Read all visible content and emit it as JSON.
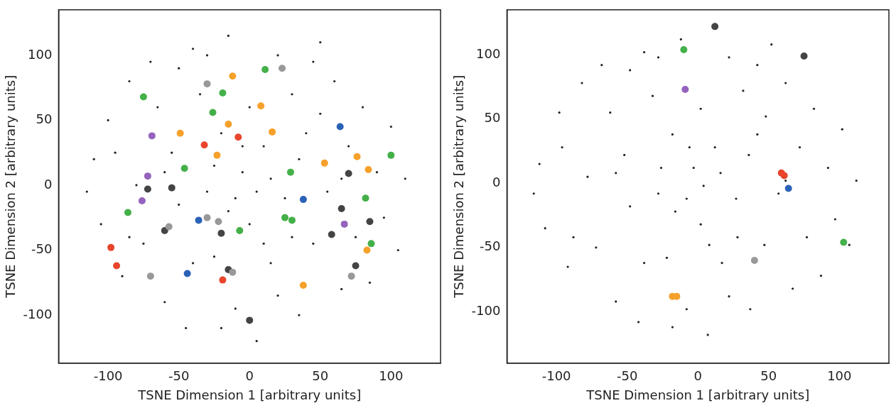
{
  "chart_data": [
    {
      "type": "scatter",
      "x_label": "TSNE Dimension 1 [arbitrary units]",
      "y_label": "TSNE Dimension 2 [arbitrary units]",
      "xlim": [
        -135,
        135
      ],
      "ylim": [
        -137,
        135
      ],
      "xticks": [
        -100,
        -50,
        0,
        50,
        100
      ],
      "yticks": [
        -100,
        -50,
        0,
        50,
        100
      ],
      "grid": false,
      "series": [
        {
          "color": "#222222",
          "marker": ".",
          "values": [
            [
              -110,
              20
            ],
            [
              -105,
              -30
            ],
            [
              -100,
              50
            ],
            [
              -90,
              -70
            ],
            [
              -85,
              80
            ],
            [
              -80,
              0
            ],
            [
              -75,
              -45
            ],
            [
              -70,
              95
            ],
            [
              -65,
              60
            ],
            [
              -60,
              -90
            ],
            [
              -55,
              25
            ],
            [
              -50,
              -15
            ],
            [
              -45,
              -110
            ],
            [
              -40,
              105
            ],
            [
              -35,
              70
            ],
            [
              -30,
              -5
            ],
            [
              -25,
              -55
            ],
            [
              -20,
              40
            ],
            [
              -15,
              115
            ],
            [
              -10,
              -95
            ],
            [
              -5,
              10
            ],
            [
              0,
              60
            ],
            [
              0,
              -30
            ],
            [
              5,
              -120
            ],
            [
              10,
              30
            ],
            [
              15,
              -60
            ],
            [
              20,
              100
            ],
            [
              25,
              -10
            ],
            [
              30,
              70
            ],
            [
              35,
              -100
            ],
            [
              40,
              40
            ],
            [
              45,
              -45
            ],
            [
              50,
              110
            ],
            [
              55,
              -5
            ],
            [
              60,
              80
            ],
            [
              65,
              -80
            ],
            [
              70,
              30
            ],
            [
              75,
              -40
            ],
            [
              80,
              60
            ],
            [
              85,
              -75
            ],
            [
              90,
              10
            ],
            [
              95,
              -25
            ],
            [
              100,
              45
            ],
            [
              105,
              -50
            ],
            [
              110,
              5
            ],
            [
              -115,
              -5
            ],
            [
              -95,
              25
            ],
            [
              -60,
              10
            ],
            [
              -40,
              -60
            ],
            [
              -10,
              -10
            ],
            [
              20,
              -85
            ],
            [
              50,
              55
            ],
            [
              -20,
              -110
            ],
            [
              -50,
              90
            ],
            [
              30,
              -40
            ],
            [
              65,
              5
            ],
            [
              -85,
              -40
            ],
            [
              45,
              95
            ],
            [
              -30,
              100
            ],
            [
              10,
              -45
            ],
            [
              -5,
              30
            ],
            [
              15,
              5
            ],
            [
              -15,
              -20
            ],
            [
              5,
              -5
            ],
            [
              -25,
              15
            ],
            [
              35,
              20
            ]
          ]
        },
        {
          "color": "#999999",
          "marker": "o",
          "values": [
            [
              -30,
              78
            ],
            [
              23,
              90
            ],
            [
              -22,
              -28
            ],
            [
              -57,
              -32
            ],
            [
              -70,
              -70
            ],
            [
              -12,
              -67
            ],
            [
              72,
              -70
            ],
            [
              -30,
              -25
            ]
          ]
        },
        {
          "color": "#444444",
          "marker": "o",
          "values": [
            [
              -72,
              -3
            ],
            [
              -55,
              -2
            ],
            [
              -60,
              -35
            ],
            [
              -20,
              -37
            ],
            [
              -15,
              -65
            ],
            [
              0,
              -104
            ],
            [
              65,
              -18
            ],
            [
              70,
              9
            ],
            [
              85,
              -28
            ],
            [
              75,
              -62
            ],
            [
              58,
              -38
            ]
          ]
        },
        {
          "color": "#f5a12a",
          "marker": "o",
          "values": [
            [
              -12,
              84
            ],
            [
              -15,
              47
            ],
            [
              8,
              61
            ],
            [
              16,
              41
            ],
            [
              -49,
              40
            ],
            [
              -23,
              23
            ],
            [
              53,
              17
            ],
            [
              76,
              22
            ],
            [
              84,
              12
            ],
            [
              83,
              -50
            ],
            [
              38,
              -77
            ]
          ]
        },
        {
          "color": "#44b049",
          "marker": "o",
          "values": [
            [
              11,
              89
            ],
            [
              -75,
              68
            ],
            [
              -19,
              71
            ],
            [
              -26,
              56
            ],
            [
              100,
              23
            ],
            [
              -46,
              13
            ],
            [
              29,
              10
            ],
            [
              82,
              -10
            ],
            [
              -86,
              -21
            ],
            [
              25,
              -25
            ],
            [
              30,
              -27
            ],
            [
              -7,
              -35
            ],
            [
              86,
              -45
            ]
          ]
        },
        {
          "color": "#9463bd",
          "marker": "o",
          "values": [
            [
              -69,
              38
            ],
            [
              -72,
              7
            ],
            [
              -76,
              -12
            ],
            [
              67,
              -30
            ]
          ]
        },
        {
          "color": "#e8452c",
          "marker": "o",
          "values": [
            [
              -32,
              31
            ],
            [
              -8,
              37
            ],
            [
              -98,
              -48
            ],
            [
              -94,
              -62
            ],
            [
              -19,
              -73
            ]
          ]
        },
        {
          "color": "#2a62b8",
          "marker": "o",
          "values": [
            [
              64,
              45
            ],
            [
              38,
              -11
            ],
            [
              -36,
              -27
            ],
            [
              -44,
              -68
            ]
          ]
        }
      ]
    },
    {
      "type": "scatter",
      "x_label": "TSNE Dimension 1 [arbitrary units]",
      "y_label": "TSNE Dimension 2 [arbitrary units]",
      "xlim": [
        -135,
        135
      ],
      "ylim": [
        -140,
        135
      ],
      "xticks": [
        -100,
        -50,
        0,
        50,
        100
      ],
      "yticks": [
        -100,
        -50,
        0,
        50,
        100
      ],
      "grid": false,
      "series": [
        {
          "color": "#222222",
          "marker": ".",
          "values": [
            [
              -112,
              15
            ],
            [
              -108,
              -35
            ],
            [
              -98,
              55
            ],
            [
              -92,
              -65
            ],
            [
              -82,
              78
            ],
            [
              -78,
              5
            ],
            [
              -72,
              -50
            ],
            [
              -68,
              92
            ],
            [
              -62,
              55
            ],
            [
              -58,
              -92
            ],
            [
              -52,
              22
            ],
            [
              -48,
              -18
            ],
            [
              -42,
              -108
            ],
            [
              -38,
              102
            ],
            [
              -32,
              68
            ],
            [
              -28,
              -8
            ],
            [
              -22,
              -58
            ],
            [
              -18,
              38
            ],
            [
              -12,
              112
            ],
            [
              -8,
              -98
            ],
            [
              -3,
              12
            ],
            [
              2,
              58
            ],
            [
              2,
              -32
            ],
            [
              7,
              -118
            ],
            [
              12,
              28
            ],
            [
              17,
              -62
            ],
            [
              22,
              98
            ],
            [
              27,
              -12
            ],
            [
              32,
              72
            ],
            [
              37,
              -98
            ],
            [
              42,
              38
            ],
            [
              47,
              -48
            ],
            [
              52,
              108
            ],
            [
              57,
              -8
            ],
            [
              62,
              78
            ],
            [
              67,
              -82
            ],
            [
              72,
              28
            ],
            [
              77,
              -42
            ],
            [
              82,
              58
            ],
            [
              87,
              -72
            ],
            [
              92,
              12
            ],
            [
              97,
              -28
            ],
            [
              102,
              42
            ],
            [
              107,
              -48
            ],
            [
              112,
              2
            ],
            [
              -116,
              -8
            ],
            [
              -96,
              28
            ],
            [
              -58,
              8
            ],
            [
              -38,
              -62
            ],
            [
              -8,
              -12
            ],
            [
              22,
              -88
            ],
            [
              48,
              52
            ],
            [
              -18,
              -112
            ],
            [
              -48,
              88
            ],
            [
              28,
              -42
            ],
            [
              62,
              2
            ],
            [
              -88,
              -42
            ],
            [
              42,
              92
            ],
            [
              -28,
              98
            ],
            [
              8,
              -48
            ],
            [
              -6,
              28
            ],
            [
              16,
              8
            ],
            [
              -16,
              -22
            ],
            [
              4,
              -2
            ],
            [
              -26,
              12
            ],
            [
              36,
              22
            ]
          ]
        },
        {
          "color": "#444444",
          "marker": "o",
          "values": [
            [
              12,
              122
            ],
            [
              75,
              99
            ]
          ]
        },
        {
          "color": "#44b049",
          "marker": "o",
          "values": [
            [
              -10,
              104
            ],
            [
              103,
              -46
            ]
          ]
        },
        {
          "color": "#9463bd",
          "marker": "o",
          "values": [
            [
              -9,
              73
            ]
          ]
        },
        {
          "color": "#e8452c",
          "marker": "o",
          "values": [
            [
              59,
              8
            ],
            [
              61,
              6
            ]
          ]
        },
        {
          "color": "#2a62b8",
          "marker": "o",
          "values": [
            [
              64,
              -4
            ]
          ]
        },
        {
          "color": "#999999",
          "marker": "o",
          "values": [
            [
              40,
              -60
            ]
          ]
        },
        {
          "color": "#f5a12a",
          "marker": "o",
          "values": [
            [
              -18,
              -88
            ],
            [
              -15,
              -88
            ]
          ]
        }
      ]
    }
  ]
}
